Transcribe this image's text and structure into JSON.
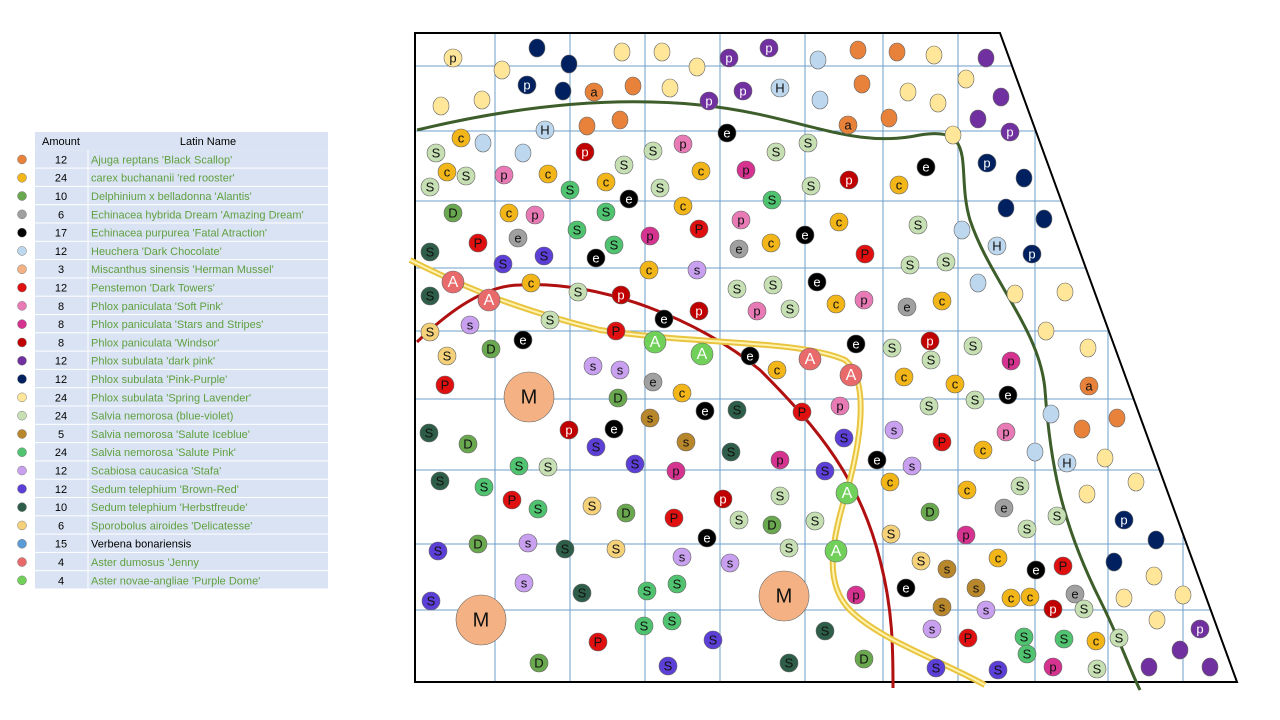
{
  "legend": {
    "headers": [
      "Amount",
      "Latin Name"
    ],
    "rows": [
      {
        "color": "#e8823a",
        "amount": 12,
        "name": "Ajuga reptans 'Black Scallop'"
      },
      {
        "color": "#f2b619",
        "amount": 24,
        "name": "carex buchananii 'red rooster'"
      },
      {
        "color": "#6aa84f",
        "amount": 10,
        "name": "Delphinium x belladonna 'Alantis'"
      },
      {
        "color": "#a0a0a0",
        "amount": 6,
        "name": "Echinacea hybrida Dream 'Amazing Dream'"
      },
      {
        "color": "#000000",
        "amount": 17,
        "name": "Echinacea purpurea 'Fatal Atraction'"
      },
      {
        "color": "#bdd7ee",
        "amount": 12,
        "name": "Heuchera 'Dark Chocolate'"
      },
      {
        "color": "#f4b183",
        "amount": 3,
        "name": "Miscanthus sinensis 'Herman Mussel'"
      },
      {
        "color": "#e01010",
        "amount": 12,
        "name": "Penstemon  'Dark Towers'"
      },
      {
        "color": "#e87bb6",
        "amount": 8,
        "name": "Phlox paniculata 'Soft Pink'"
      },
      {
        "color": "#d63391",
        "amount": 8,
        "name": "Phlox paniculata 'Stars and Stripes'"
      },
      {
        "color": "#c00000",
        "amount": 8,
        "name": "Phlox paniculata 'Windsor'"
      },
      {
        "color": "#7030a0",
        "amount": 12,
        "name": "Phlox subulata 'dark pink'"
      },
      {
        "color": "#002060",
        "amount": 12,
        "name": "Phlox subulata 'Pink-Purple'"
      },
      {
        "color": "#ffe699",
        "amount": 24,
        "name": "Phlox subulata 'Spring Lavender'"
      },
      {
        "color": "#c6e0b4",
        "amount": 24,
        "name": "Salvia nemorosa (blue-violet)"
      },
      {
        "color": "#b8862b",
        "amount": 5,
        "name": "Salvia nemorosa 'Salute Iceblue'"
      },
      {
        "color": "#4fc36f",
        "amount": 24,
        "name": "Salvia nemorosa 'Salute Pink'"
      },
      {
        "color": "#c9a0f0",
        "amount": 12,
        "name": "Scabiosa caucasica 'Stafa'"
      },
      {
        "color": "#5b3fd6",
        "amount": 12,
        "name": "Sedum telephium  'Brown-Red'"
      },
      {
        "color": "#2e5e4a",
        "amount": 10,
        "name": "Sedum telephium  'Herbstfreude'"
      },
      {
        "color": "#f5d27a",
        "amount": 6,
        "name": "Sporobolus airoides 'Delicatesse'"
      },
      {
        "color": "#5b9bd5",
        "amount": 15,
        "name": "Verbena bonariensis"
      },
      {
        "color": "#e86a6a",
        "amount": 4,
        "name": "Aster dumosus 'Jenny"
      },
      {
        "color": "#70d05a",
        "amount": 4,
        "name": "Aster novae-angliae 'Purple Dome'"
      }
    ]
  },
  "plan": {
    "markers": [
      "p",
      "p",
      "p",
      "p",
      "a",
      "p",
      "p",
      "H",
      "a",
      "p",
      "c",
      "H",
      "S",
      "p",
      "S",
      "p",
      "e",
      "S",
      "S",
      "c",
      "S",
      "p",
      "c",
      "S",
      "c",
      "p",
      "S",
      "S",
      "c",
      "S",
      "S",
      "p",
      "c",
      "e",
      "p",
      "e",
      "c",
      "S",
      "D",
      "c",
      "p",
      "S",
      "p",
      "c",
      "S",
      "S",
      "e",
      "p",
      "P",
      "c",
      "e",
      "S",
      "P",
      "S",
      "S",
      "e",
      "S",
      "e",
      "P",
      "H",
      "p",
      "c",
      "s",
      "S",
      "S",
      "A",
      "S",
      "A",
      "c",
      "S",
      "p",
      "S",
      "S",
      "e",
      "p",
      "p",
      "S",
      "c",
      "p",
      "e",
      "c",
      "S",
      "s",
      "S",
      "P",
      "e",
      "e",
      "S",
      "D",
      "A",
      "A",
      "e",
      "A",
      "e",
      "S",
      "p",
      "S",
      "s",
      "s",
      "c",
      "A",
      "S",
      "p",
      "P",
      "M",
      "e",
      "c",
      "c",
      "c",
      "a",
      "D",
      "S",
      "e",
      "S",
      "e",
      "s",
      "P",
      "p",
      "S",
      "S",
      "p",
      "e",
      "s",
      "s",
      "p",
      "D",
      "S",
      "S",
      "S",
      "P",
      "c",
      "S",
      "p",
      "p",
      "e",
      "s",
      "H",
      "S",
      "S",
      "S",
      "S",
      "S",
      "c",
      "A",
      "c",
      "S",
      "P",
      "S",
      "S",
      "p",
      "S",
      "D",
      "P",
      "S",
      "D",
      "S",
      "D",
      "e",
      "S",
      "p",
      "S",
      "p",
      "S",
      "e",
      "S",
      "D",
      "s",
      "S",
      "S",
      "S",
      "A",
      "s",
      "s",
      "S",
      "c",
      "P",
      "e",
      "s",
      "s",
      "S",
      "S",
      "S",
      "M",
      "e",
      "s",
      "c",
      "c",
      "e",
      "S",
      "s",
      "s",
      "p",
      "S",
      "p",
      "M",
      "S",
      "S",
      "S",
      "s",
      "p",
      "P",
      "S",
      "P",
      "S",
      "S",
      "c",
      "S",
      "D",
      "S",
      "S",
      "D",
      "S",
      "S",
      "S",
      "p",
      "S"
    ]
  }
}
